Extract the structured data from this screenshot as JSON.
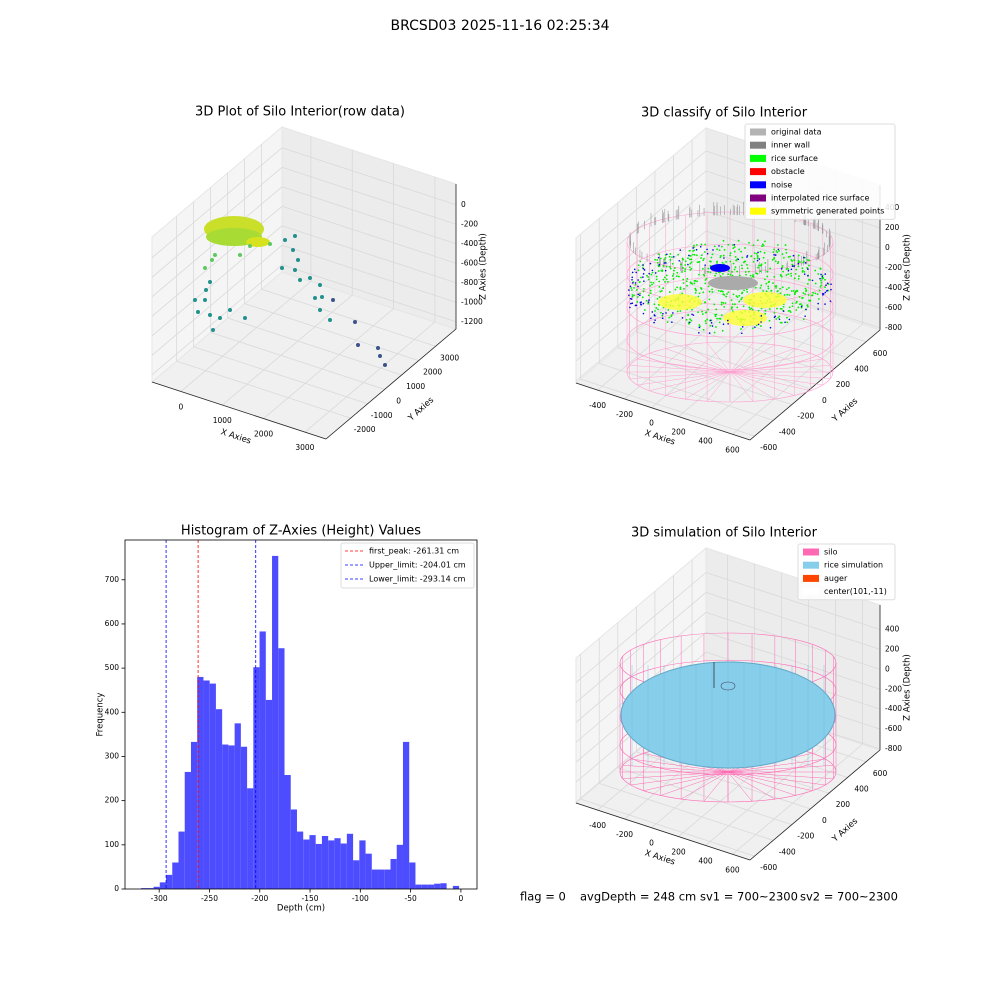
{
  "suptitle": "BRCSD03 2025-11-16 02:25:34",
  "chart_data": [
    {
      "type": "scatter3d",
      "title": "3D Plot of Silo Interior(row data)",
      "xlabel": "X Axies",
      "ylabel": "Y Axies",
      "zlabel": "Z Axies (Depth)",
      "xlim": [
        -700,
        3510
      ],
      "ylim": [
        -3450,
        4200
      ],
      "zlim": [
        -1274,
        213
      ],
      "xticks": [
        0,
        1000,
        2000,
        3000
      ],
      "yticks": [
        -2000,
        -1000,
        0,
        1000,
        2000,
        3000
      ],
      "zticks": [
        0,
        -200,
        -400,
        -600,
        -800,
        -1000,
        -1200
      ]
    },
    {
      "type": "scatter3d",
      "title": "3D classify of Silo Interior",
      "xlabel": "X Axies",
      "ylabel": "Y Axies",
      "zlabel": "Z Axies (Depth)",
      "xlim": [
        -560,
        730
      ],
      "ylim": [
        -650,
        750
      ],
      "zlim": [
        -820,
        630
      ],
      "xticks": [
        -400,
        -200,
        0,
        200,
        400,
        600
      ],
      "yticks": [
        -600,
        -400,
        -200,
        0,
        200,
        400,
        600
      ],
      "zticks": [
        400,
        200,
        0,
        -200,
        -400,
        -600,
        -800
      ],
      "legend": [
        {
          "name": "original data",
          "color": "#b3b3b3"
        },
        {
          "name": "inner wall",
          "color": "#808080"
        },
        {
          "name": "rice surface",
          "color": "#00ff00"
        },
        {
          "name": "obstacle",
          "color": "#ff0000"
        },
        {
          "name": "noise",
          "color": "#0000ff"
        },
        {
          "name": "interpolated rice surface",
          "color": "#800080"
        },
        {
          "name": "symmetric generated points",
          "color": "#ffff00"
        }
      ]
    },
    {
      "type": "histogram",
      "title": "Histogram of Z-Axies (Height) Values",
      "xlabel": "Depth (cm)",
      "ylabel": "Frequency",
      "color": "#4d4dff",
      "bins": [
        -318,
        -311.8,
        -305.6,
        -299.4,
        -293.2,
        -287,
        -280.8,
        -274.6,
        -268.4,
        -262.2,
        -256,
        -249.8,
        -243.6,
        -237.4,
        -231.2,
        -225,
        -218.8,
        -212.6,
        -206.4,
        -200.2,
        -194,
        -187.8,
        -181.6,
        -175.4,
        -169.2,
        -163,
        -156.8,
        -150.6,
        -144.4,
        -138.2,
        -132,
        -125.8,
        -119.6,
        -113.4,
        -107.2,
        -101,
        -94.8,
        -88.6,
        -82.4,
        -76.2,
        -70,
        -63.8,
        -57.6,
        -51.4,
        -45.2,
        -39,
        -32.8,
        -26.6,
        -20.4,
        -14.2,
        -8,
        -1.8
      ],
      "counts": [
        2,
        2,
        5,
        15,
        32,
        60,
        130,
        265,
        333,
        480,
        472,
        465,
        407,
        327,
        325,
        375,
        322,
        228,
        502,
        583,
        428,
        754,
        545,
        258,
        180,
        130,
        112,
        122,
        102,
        120,
        110,
        115,
        103,
        125,
        65,
        110,
        80,
        44,
        44,
        44,
        68,
        100,
        333,
        60,
        10,
        10,
        10,
        12,
        13,
        0,
        7
      ],
      "xlim": [
        -334,
        16
      ],
      "ylim": [
        0,
        790
      ],
      "xticks": [
        -300,
        -250,
        -200,
        -150,
        -100,
        -50,
        0
      ],
      "yticks": [
        0,
        100,
        200,
        300,
        400,
        500,
        600,
        700
      ],
      "vlines": [
        {
          "value": -261.31,
          "label": "first_peak: -261.31 cm",
          "color": "#ff0000"
        },
        {
          "value": -204.01,
          "label": "Upper_limit: -204.01 cm",
          "color": "#0000ff"
        },
        {
          "value": -293.14,
          "label": "Lower_limit: -293.14 cm",
          "color": "#0000ff"
        }
      ]
    },
    {
      "type": "surface3d",
      "title": "3D simulation of Silo Interior",
      "xlabel": "X Axies",
      "ylabel": "Y Axies",
      "zlabel": "Z Axies (Depth)",
      "xlim": [
        -560,
        730
      ],
      "ylim": [
        -650,
        750
      ],
      "zlim": [
        -810,
        646
      ],
      "xticks": [
        -400,
        -200,
        0,
        200,
        400,
        600
      ],
      "yticks": [
        -600,
        -400,
        -200,
        0,
        200,
        400,
        600
      ],
      "zticks": [
        400,
        200,
        0,
        -200,
        -400,
        -600,
        -800
      ],
      "legend": [
        {
          "name": "silo",
          "color": "#ff69b4"
        },
        {
          "name": "rice simulation",
          "color": "#87ceeb"
        },
        {
          "name": "auger",
          "color": "#ff4500"
        },
        {
          "name": "center(101,-11)",
          "color": "#ffffff"
        }
      ]
    }
  ],
  "footer": [
    "flag = 0",
    "avgDepth = 248 cm",
    "sv1 = 700~2300",
    "sv2 = 700~2300"
  ]
}
